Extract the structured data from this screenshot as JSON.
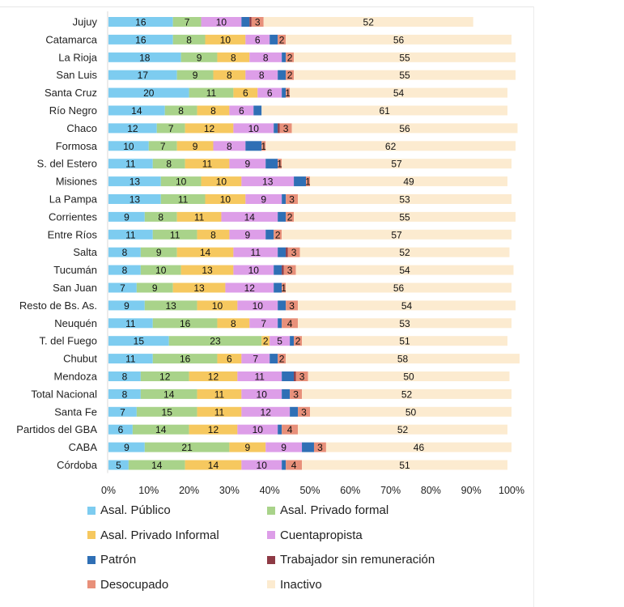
{
  "chart_data": {
    "type": "bar",
    "orientation": "horizontal",
    "stacked": "percent",
    "title": "",
    "xlabel": "",
    "ylabel": "",
    "xlim": [
      0,
      100
    ],
    "x_ticks": [
      "0%",
      "10%",
      "20%",
      "30%",
      "40%",
      "50%",
      "60%",
      "70%",
      "80%",
      "90%",
      "100%"
    ],
    "grid": false,
    "legend_position": "bottom",
    "categories": [
      "Jujuy",
      "Catamarca",
      "La Rioja",
      "San Luis",
      "Santa Cruz",
      "Río Negro",
      "Chaco",
      "Formosa",
      "S. del Estero",
      "Misiones",
      "La Pampa",
      "Corrientes",
      "Entre Ríos",
      "Salta",
      "Tucumán",
      "San Juan",
      "Resto de Bs. As.",
      "Neuquén",
      "T. del Fuego",
      "Chubut",
      "Mendoza",
      "Total Nacional",
      "Santa Fe",
      "Partidos del GBA",
      "CABA",
      "Córdoba"
    ],
    "series": [
      {
        "name": "Asal. Público",
        "color": "#7dccf0",
        "labeled": true,
        "values": [
          16,
          16,
          18,
          17,
          20,
          14,
          12,
          10,
          11,
          13,
          13,
          9,
          11,
          8,
          8,
          7,
          9,
          11,
          15,
          11,
          8,
          8,
          7,
          6,
          9,
          5
        ]
      },
      {
        "name": "Asal. Privado formal",
        "color": "#a9d38a",
        "labeled": true,
        "values": [
          7,
          8,
          9,
          9,
          11,
          8,
          7,
          7,
          8,
          10,
          11,
          8,
          11,
          9,
          10,
          9,
          13,
          16,
          23,
          16,
          12,
          14,
          15,
          14,
          21,
          14
        ]
      },
      {
        "name": "Asal. Privado Informal",
        "color": "#f6c85f",
        "labeled": true,
        "values": [
          0,
          10,
          8,
          8,
          6,
          8,
          12,
          9,
          11,
          10,
          10,
          11,
          8,
          14,
          13,
          13,
          10,
          8,
          2,
          6,
          12,
          11,
          11,
          12,
          9,
          14
        ]
      },
      {
        "name": "Cuentapropista",
        "color": "#dd9ee8",
        "labeled": true,
        "values": [
          10,
          6,
          8,
          8,
          6,
          6,
          10,
          8,
          9,
          13,
          9,
          14,
          9,
          11,
          10,
          12,
          10,
          7,
          5,
          7,
          11,
          10,
          12,
          10,
          9,
          10
        ]
      },
      {
        "name": "Patrón",
        "color": "#2f6fb5",
        "labeled": false,
        "values": [
          2,
          2,
          1,
          2,
          1,
          2,
          1,
          4,
          3,
          3,
          1,
          2,
          2,
          2,
          2,
          2,
          2,
          1,
          1,
          2,
          3,
          2,
          2,
          1,
          3,
          1
        ]
      },
      {
        "name": "Trabajador sin remuneración",
        "color": "#8e3a45",
        "labeled": false,
        "values": [
          0.5,
          0,
          0,
          0,
          0,
          0,
          0.5,
          0,
          0,
          0,
          0,
          0,
          0,
          0.5,
          0.5,
          0,
          0,
          0,
          0,
          0,
          0.5,
          0,
          0,
          0,
          0,
          0
        ]
      },
      {
        "name": "Desocupado",
        "color": "#e8907a",
        "labeled": true,
        "values": [
          3,
          2,
          2,
          2,
          1,
          0,
          3,
          1,
          1,
          1,
          3,
          2,
          2,
          3,
          3,
          1,
          3,
          4,
          2,
          2,
          3,
          3,
          3,
          4,
          3,
          4
        ]
      },
      {
        "name": "Inactivo",
        "color": "#fcebd0",
        "labeled": true,
        "values": [
          52,
          56,
          55,
          55,
          54,
          61,
          56,
          62,
          57,
          49,
          53,
          55,
          57,
          52,
          54,
          56,
          54,
          53,
          51,
          58,
          50,
          52,
          50,
          52,
          46,
          51
        ]
      }
    ]
  }
}
